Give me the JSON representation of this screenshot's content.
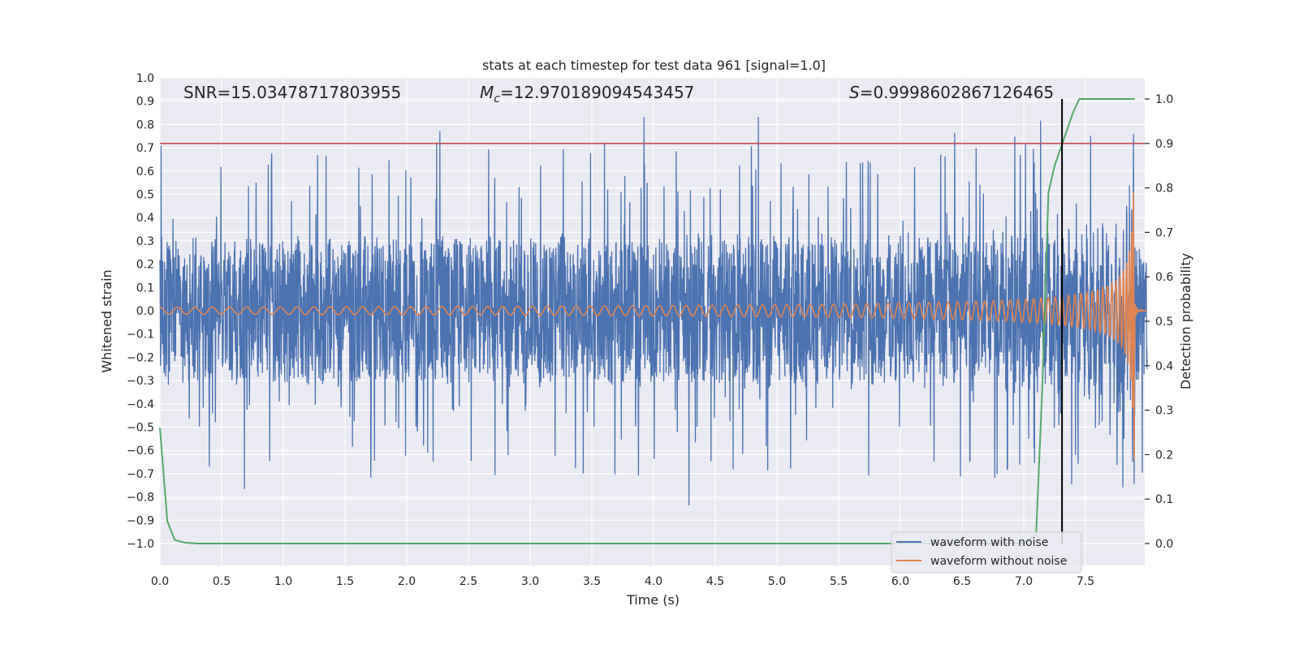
{
  "chart_data": {
    "type": "line",
    "title": "stats at each timestep for test data 961 [signal=1.0]",
    "xlabel": "Time (s)",
    "ylabel": "Whitened strain",
    "ylabel_right": "Detection probability",
    "xlim": [
      0.0,
      8.0
    ],
    "ylim": [
      -1.1,
      1.0
    ],
    "ylim_right": [
      -0.05,
      1.05
    ],
    "xticks": [
      "0.0",
      "0.5",
      "1.0",
      "1.5",
      "2.0",
      "2.5",
      "3.0",
      "3.5",
      "4.0",
      "4.5",
      "5.0",
      "5.5",
      "6.0",
      "6.5",
      "7.0",
      "7.5"
    ],
    "yticks": [
      "1.0",
      "0.9",
      "0.8",
      "0.7",
      "0.6",
      "0.5",
      "0.4",
      "0.3",
      "0.2",
      "0.1",
      "0.0",
      "−0.1",
      "−0.2",
      "−0.3",
      "−0.4",
      "−0.5",
      "−0.6",
      "−0.7",
      "−0.8",
      "−0.9",
      "−1.0"
    ],
    "yticks_right": [
      "1.0",
      "0.9",
      "0.8",
      "0.7",
      "0.6",
      "0.5",
      "0.4",
      "0.3",
      "0.2",
      "0.1",
      "0.0"
    ],
    "grid": true,
    "legend_position": "lower-right",
    "annotations": {
      "snr": "SNR=15.03478717803955",
      "mc_sym": "M",
      "mc_sub": "c",
      "mc_val": "=12.970189094543457",
      "s_sym": "S",
      "s_val": "=0.9998602867126465"
    },
    "threshold_right": 0.9,
    "vertical_marker_time": 7.31,
    "series": [
      {
        "name": "waveform with noise",
        "color": "#4c72b0",
        "description_values": {
          "typical_amplitude": 0.35,
          "max": 0.91,
          "min": -0.99
        }
      },
      {
        "name": "waveform without noise",
        "color": "#dd8452",
        "chirp_start_amplitude": 0.015,
        "chirp_peak_amplitude": 0.65,
        "merger_time": 7.9
      },
      {
        "axis": "right",
        "color": "#55a868",
        "x": [
          0.0,
          0.06,
          0.12,
          0.2,
          0.3,
          0.5,
          1.0,
          2.0,
          3.0,
          4.0,
          5.0,
          6.0,
          6.5,
          7.0,
          7.1,
          7.15,
          7.2,
          7.25,
          7.3,
          7.35,
          7.4,
          7.45,
          7.5,
          7.6,
          7.7,
          7.8,
          7.9
        ],
        "values": [
          0.26,
          0.05,
          0.008,
          0.002,
          0.0,
          0.0,
          0.0,
          0.0,
          0.0,
          0.0,
          0.0,
          0.0,
          0.0,
          0.0,
          0.02,
          0.35,
          0.79,
          0.85,
          0.89,
          0.93,
          0.97,
          1.0,
          1.0,
          1.0,
          1.0,
          1.0,
          1.0
        ]
      }
    ]
  },
  "colors": {
    "plot_bg": "#eaeaf2",
    "grid": "#ffffff",
    "threshold": "#c44e52",
    "vertical_marker": "#000000"
  }
}
